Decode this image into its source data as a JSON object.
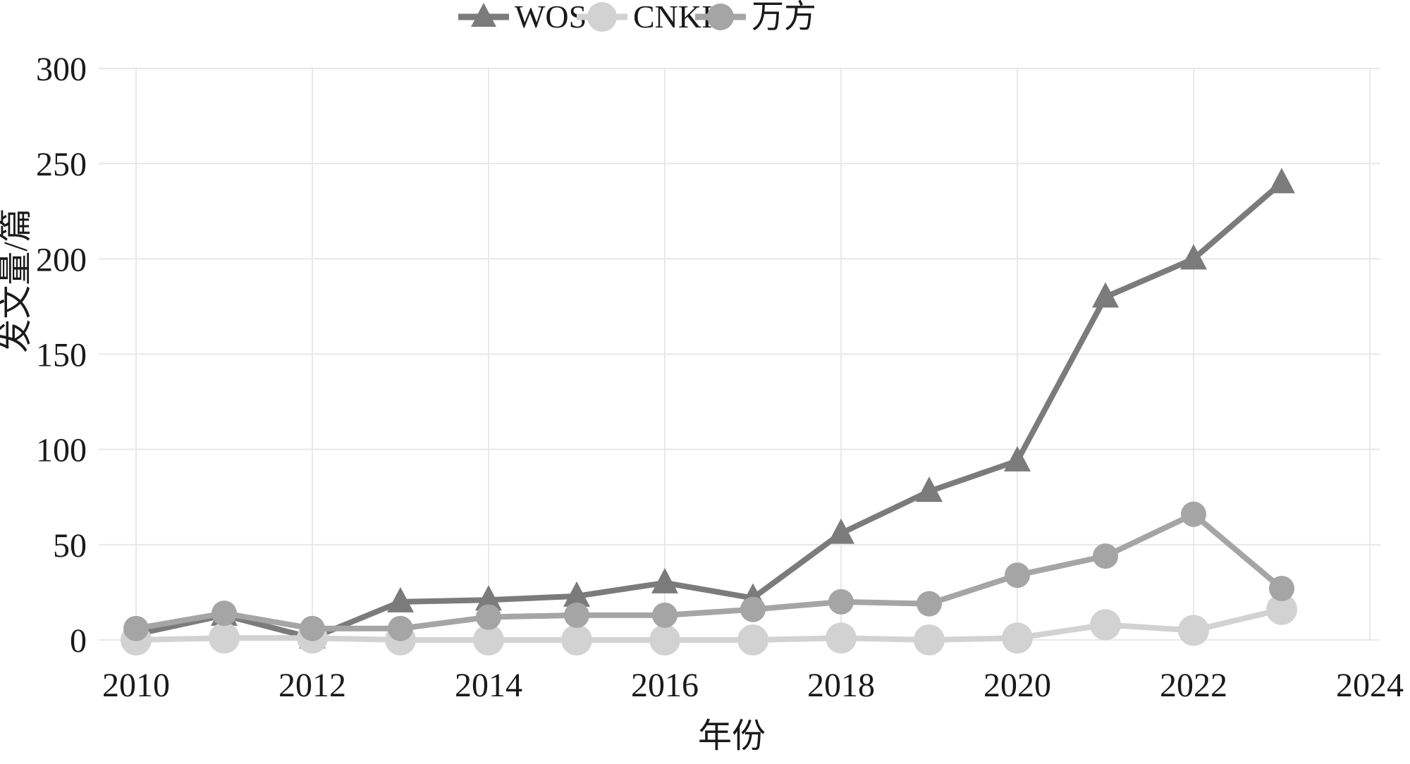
{
  "colors": {
    "background": "#ffffff",
    "gridline": "#e8e8e8",
    "text": "#1a1a1a",
    "wos": "#7b7b7b",
    "cnki": "#d2d2d2",
    "wanfang": "#a5a5a5"
  },
  "chart_data": {
    "type": "line",
    "x": [
      2010,
      2011,
      2012,
      2013,
      2014,
      2015,
      2016,
      2017,
      2018,
      2019,
      2020,
      2021,
      2022,
      2023
    ],
    "x_ticks": [
      2010,
      2012,
      2014,
      2016,
      2018,
      2020,
      2022,
      2024
    ],
    "y_ticks": [
      0,
      50,
      100,
      150,
      200,
      250,
      300
    ],
    "xlim": [
      2010,
      2024
    ],
    "ylim": [
      0,
      300
    ],
    "xlabel": "年份",
    "ylabel": "发文量/篇",
    "grid": true,
    "legend_position": "top-center",
    "series": [
      {
        "key": "wos",
        "name": "WOS",
        "marker": "triangle",
        "color": "#7b7b7b",
        "values": [
          3,
          13,
          1,
          20,
          21,
          23,
          30,
          22,
          56,
          78,
          94,
          180,
          200,
          240
        ]
      },
      {
        "key": "cnki",
        "name": "CNKI",
        "marker": "circle",
        "color": "#d2d2d2",
        "values": [
          0,
          1,
          1,
          0,
          0,
          0,
          0,
          0,
          1,
          0,
          1,
          8,
          5,
          16
        ]
      },
      {
        "key": "wanfang",
        "name": "万方",
        "marker": "circle",
        "color": "#a5a5a5",
        "values": [
          6,
          14,
          6,
          6,
          12,
          13,
          13,
          16,
          20,
          19,
          34,
          44,
          66,
          27
        ]
      }
    ]
  }
}
